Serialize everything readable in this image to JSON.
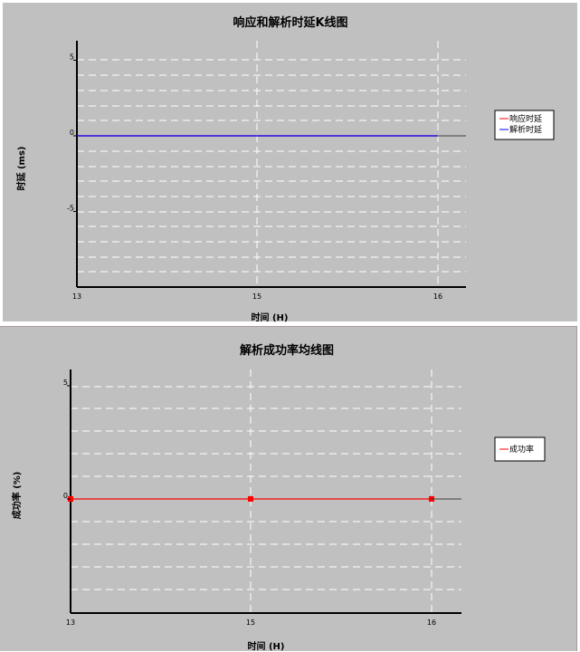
{
  "colors": {
    "background": "#c0c0c0",
    "grid": "#ffffff",
    "axis": "#000000",
    "response_delay": "#ff0000",
    "parse_delay": "#0000ff",
    "success_rate": "#ff0000"
  },
  "chart_data": [
    {
      "type": "line",
      "title": "响应和解析时延K线图",
      "xlabel": "时间 (H)",
      "ylabel": "时延 (ms)",
      "x_ticks": [
        "13",
        "15",
        "16"
      ],
      "y_ticks": [
        "5",
        "0",
        "-5"
      ],
      "ylim": [
        -10,
        5
      ],
      "grid": true,
      "legend_position": "right",
      "series": [
        {
          "name": "响应时延",
          "color": "#ff0000",
          "values": [
            0,
            0,
            0
          ]
        },
        {
          "name": "解析时延",
          "color": "#0000ff",
          "values": [
            0,
            0,
            0
          ]
        }
      ]
    },
    {
      "type": "line",
      "title": "解析成功率均线图",
      "xlabel": "时间 (H)",
      "ylabel": "成功率 (%)",
      "x_ticks": [
        "13",
        "15",
        "16"
      ],
      "y_ticks": [
        "5",
        "0"
      ],
      "ylim": [
        -5,
        5
      ],
      "grid": true,
      "legend_position": "right",
      "series": [
        {
          "name": "成功率",
          "color": "#ff0000",
          "values": [
            0,
            0,
            0
          ],
          "markers": true
        }
      ]
    }
  ]
}
